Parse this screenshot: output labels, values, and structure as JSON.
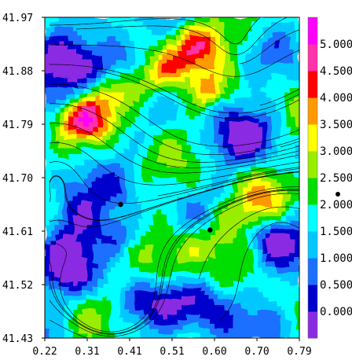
{
  "chart_data": {
    "type": "heatmap",
    "title": "",
    "xlabel": "",
    "ylabel": "",
    "xlim": [
      0.22,
      0.79
    ],
    "ylim": [
      41.43,
      41.97
    ],
    "x_ticks": [
      "0.22",
      "0.31",
      "0.41",
      "0.51",
      "0.60",
      "0.70",
      "0.79"
    ],
    "y_ticks": [
      "41.97",
      "41.88",
      "41.79",
      "41.70",
      "41.61",
      "41.52",
      "41.43"
    ],
    "colorbar": {
      "labels": [
        "0.000",
        "0.500",
        "1.000",
        "1.500",
        "2.000",
        "2.500",
        "3.000",
        "3.500",
        "4.000",
        "4.500",
        "5.000"
      ],
      "levels": [
        0.0,
        0.5,
        1.0,
        1.5,
        2.0,
        2.5,
        3.0,
        3.5,
        4.0,
        4.5,
        5.0
      ],
      "colors": [
        "#8a2be2",
        "#0000cd",
        "#1e6fff",
        "#00c8ff",
        "#00ffff",
        "#00dd00",
        "#99ee00",
        "#ffff00",
        "#ff9900",
        "#ff0000",
        "#ff33aa",
        "#ff00ff"
      ]
    },
    "overlay": "streamlines",
    "markers": [
      {
        "x": 0.39,
        "y": 41.655
      },
      {
        "x": 0.59,
        "y": 41.612
      }
    ],
    "field_bands": [
      {
        "x": [
          0.31,
          0.57
        ],
        "y": [
          41.8,
          41.93
        ],
        "level": 4.5
      },
      {
        "x": [
          0.45,
          0.7
        ],
        "y": [
          41.52,
          41.66
        ],
        "level": 3.0
      }
    ]
  }
}
